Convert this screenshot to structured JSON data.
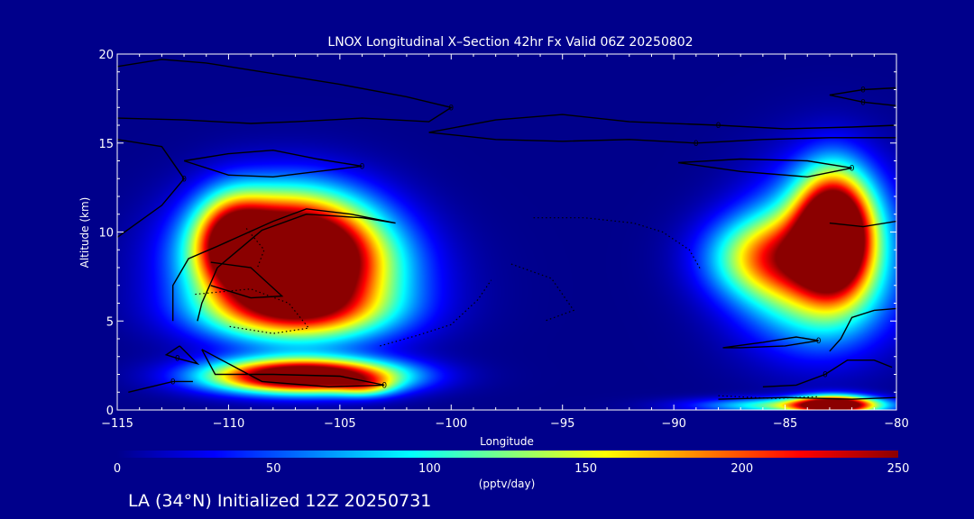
{
  "title": "LNOX Longitudinal X–Section 42hr  Fx Valid 06Z 20250802",
  "footer": "LA (34°N) Initialized 12Z 20250731",
  "chart_data": {
    "type": "heatmap",
    "title": "LNOX Longitudinal X–Section 42hr  Fx Valid 06Z 20250802",
    "xlabel": "Longitude",
    "ylabel": "Altitude (km)",
    "xlim": [
      -115,
      -80
    ],
    "ylim": [
      0,
      20
    ],
    "xticks": [
      {
        "value": -115,
        "label": "−115"
      },
      {
        "value": -110,
        "label": "−110"
      },
      {
        "value": -105,
        "label": "−105"
      },
      {
        "value": -100,
        "label": "−100"
      },
      {
        "value": -95,
        "label": "−95"
      },
      {
        "value": -90,
        "label": "−90"
      },
      {
        "value": -85,
        "label": "−85"
      },
      {
        "value": -80,
        "label": "−80"
      }
    ],
    "yticks": [
      {
        "value": 0,
        "label": "0"
      },
      {
        "value": 5,
        "label": "5"
      },
      {
        "value": 10,
        "label": "10"
      },
      {
        "value": 15,
        "label": "15"
      },
      {
        "value": 20,
        "label": "20"
      }
    ],
    "colorbar": {
      "label": "(pptv/day)",
      "range": [
        0,
        250
      ],
      "ticks": [
        {
          "value": 0,
          "label": "0"
        },
        {
          "value": 50,
          "label": "50"
        },
        {
          "value": 100,
          "label": "100"
        },
        {
          "value": 150,
          "label": "150"
        },
        {
          "value": 200,
          "label": "200"
        },
        {
          "value": 250,
          "label": "250"
        }
      ],
      "colors": [
        "#00008b",
        "#0000ff",
        "#0080ff",
        "#00ffff",
        "#80ff80",
        "#ffff00",
        "#ff8000",
        "#ff0000",
        "#8b0000"
      ]
    },
    "background_value": 0,
    "blobs": [
      {
        "name": "west-upper-core",
        "lon": -107.2,
        "alt": 9.0,
        "sx": 2.6,
        "sy": 2.2,
        "peak": 340
      },
      {
        "name": "west-upper-left",
        "lon": -109.8,
        "alt": 9.6,
        "sx": 1.1,
        "sy": 1.7,
        "peak": 150
      },
      {
        "name": "west-upper-spread",
        "lon": -106.5,
        "alt": 7.2,
        "sx": 3.2,
        "sy": 2.2,
        "peak": 130
      },
      {
        "name": "west-mid-wing",
        "lon": -107.0,
        "alt": 5.5,
        "sx": 3.0,
        "sy": 1.1,
        "peak": 100
      },
      {
        "name": "west-low-band",
        "lon": -106.6,
        "alt": 1.9,
        "sx": 2.9,
        "sy": 0.65,
        "peak": 330
      },
      {
        "name": "west-low-tail",
        "lon": -103.8,
        "alt": 1.3,
        "sx": 0.9,
        "sy": 0.4,
        "peak": 70
      },
      {
        "name": "east-upper-core",
        "lon": -82.8,
        "alt": 10.0,
        "sx": 1.1,
        "sy": 2.2,
        "peak": 300
      },
      {
        "name": "east-upper-spread",
        "lon": -83.2,
        "alt": 9.2,
        "sx": 2.2,
        "sy": 3.0,
        "peak": 130
      },
      {
        "name": "east-mid-tongue",
        "lon": -85.8,
        "alt": 8.6,
        "sx": 1.9,
        "sy": 1.6,
        "peak": 140
      },
      {
        "name": "east-low-spread",
        "lon": -83.8,
        "alt": 6.0,
        "sx": 2.4,
        "sy": 2.2,
        "peak": 55
      },
      {
        "name": "east-surface-core",
        "lon": -82.8,
        "alt": 0.3,
        "sx": 1.2,
        "sy": 0.35,
        "peak": 270
      },
      {
        "name": "east-surface-band",
        "lon": -84.5,
        "alt": 0.25,
        "sx": 3.0,
        "sy": 0.3,
        "peak": 120
      }
    ],
    "contours": [
      {
        "style": "solid",
        "label": "0",
        "points": [
          [
            -115,
            19.3
          ],
          [
            -113,
            19.7
          ],
          [
            -111,
            19.5
          ],
          [
            -108,
            18.9
          ],
          [
            -105,
            18.3
          ],
          [
            -102,
            17.6
          ],
          [
            -100,
            17.0
          ],
          [
            -101,
            16.2
          ],
          [
            -104,
            16.4
          ],
          [
            -107,
            16.2
          ],
          [
            -109,
            16.1
          ],
          [
            -112,
            16.3
          ],
          [
            -115,
            16.4
          ]
        ]
      },
      {
        "style": "solid",
        "label": "0",
        "points": [
          [
            -115,
            15.2
          ],
          [
            -113,
            14.8
          ],
          [
            -112,
            13.0
          ],
          [
            -113,
            11.5
          ],
          [
            -115,
            9.7
          ]
        ]
      },
      {
        "style": "solid",
        "label": "0",
        "points": [
          [
            -112,
            14.0
          ],
          [
            -110,
            14.4
          ],
          [
            -108,
            14.6
          ],
          [
            -106,
            14.1
          ],
          [
            -104,
            13.7
          ],
          [
            -106,
            13.4
          ],
          [
            -108,
            13.1
          ],
          [
            -110,
            13.2
          ],
          [
            -112,
            14.0
          ]
        ]
      },
      {
        "style": "solid",
        "label": "0",
        "points": [
          [
            -101,
            15.6
          ],
          [
            -98,
            16.3
          ],
          [
            -95,
            16.6
          ],
          [
            -92,
            16.2
          ],
          [
            -88,
            16.0
          ],
          [
            -85,
            15.8
          ],
          [
            -82,
            15.9
          ],
          [
            -80,
            16.0
          ]
        ]
      },
      {
        "style": "solid",
        "label": "0",
        "points": [
          [
            -101,
            15.6
          ],
          [
            -98,
            15.2
          ],
          [
            -95,
            15.1
          ],
          [
            -92,
            15.2
          ],
          [
            -89,
            15.0
          ],
          [
            -86,
            15.2
          ],
          [
            -83,
            15.3
          ],
          [
            -80,
            15.3
          ]
        ]
      },
      {
        "style": "solid",
        "label": "0",
        "points": [
          [
            -83,
            17.7
          ],
          [
            -81.5,
            18.0
          ],
          [
            -80,
            18.1
          ]
        ]
      },
      {
        "style": "solid",
        "label": "0",
        "points": [
          [
            -83,
            17.7
          ],
          [
            -81.5,
            17.3
          ],
          [
            -80,
            17.1
          ]
        ]
      },
      {
        "style": "solid",
        "label": "0",
        "points": [
          [
            -89.8,
            13.9
          ],
          [
            -87,
            14.1
          ],
          [
            -84,
            14.0
          ],
          [
            -82,
            13.6
          ],
          [
            -84,
            13.1
          ],
          [
            -87,
            13.4
          ],
          [
            -89.8,
            13.9
          ]
        ]
      },
      {
        "style": "solid",
        "label": "0",
        "points": [
          [
            -111.2,
            3.4
          ],
          [
            -110.6,
            2.0
          ],
          [
            -108,
            2.0
          ],
          [
            -105,
            1.9
          ],
          [
            -103,
            1.4
          ],
          [
            -105.5,
            1.3
          ],
          [
            -108.5,
            1.6
          ],
          [
            -111.2,
            3.4
          ]
        ]
      },
      {
        "style": "solid",
        "label": "0",
        "points": [
          [
            -114.5,
            1.0
          ],
          [
            -112.5,
            1.6
          ],
          [
            -111.6,
            1.6
          ]
        ]
      },
      {
        "style": "solid",
        "label": "0",
        "points": [
          [
            -112.2,
            3.6
          ],
          [
            -111.8,
            3.1
          ],
          [
            -111.4,
            2.6
          ],
          [
            -112.3,
            2.9
          ],
          [
            -112.8,
            3.1
          ],
          [
            -112.2,
            3.6
          ]
        ]
      },
      {
        "style": "solid",
        "label": "",
        "points": [
          [
            -112.5,
            5.0
          ],
          [
            -112.5,
            7.0
          ],
          [
            -111.8,
            8.5
          ],
          [
            -110.5,
            9.2
          ],
          [
            -108,
            10.6
          ],
          [
            -106.5,
            11.3
          ],
          [
            -104.5,
            11.0
          ],
          [
            -102.5,
            10.5
          ],
          [
            -104,
            10.8
          ],
          [
            -106.5,
            11.0
          ],
          [
            -108.5,
            10.1
          ],
          [
            -110.5,
            8.0
          ],
          [
            -111.2,
            6.0
          ],
          [
            -111.4,
            5.0
          ]
        ]
      },
      {
        "style": "solid",
        "label": "",
        "points": [
          [
            -110.8,
            8.3
          ],
          [
            -109,
            8.0
          ],
          [
            -107.6,
            6.4
          ],
          [
            -109,
            6.3
          ],
          [
            -110.8,
            7.0
          ]
        ]
      },
      {
        "style": "solid",
        "label": "0",
        "points": [
          [
            -87.8,
            3.5
          ],
          [
            -86,
            3.8
          ],
          [
            -84.5,
            4.1
          ],
          [
            -83.5,
            3.9
          ],
          [
            -85,
            3.6
          ],
          [
            -87,
            3.5
          ],
          [
            -87.8,
            3.5
          ]
        ]
      },
      {
        "style": "solid",
        "label": "",
        "points": [
          [
            -83,
            10.5
          ],
          [
            -81.5,
            10.3
          ],
          [
            -80,
            10.6
          ]
        ]
      },
      {
        "style": "solid",
        "label": "",
        "points": [
          [
            -83,
            3.3
          ],
          [
            -82.5,
            4.0
          ],
          [
            -82,
            5.2
          ],
          [
            -81,
            5.6
          ],
          [
            -80,
            5.7
          ]
        ]
      },
      {
        "style": "solid",
        "label": "0",
        "points": [
          [
            -80.2,
            2.4
          ],
          [
            -81,
            2.8
          ],
          [
            -82.2,
            2.8
          ],
          [
            -83.2,
            2.0
          ],
          [
            -84.5,
            1.4
          ],
          [
            -86,
            1.3
          ]
        ]
      },
      {
        "style": "solid",
        "label": "",
        "points": [
          [
            -88,
            0.6
          ],
          [
            -85,
            0.7
          ],
          [
            -82,
            0.6
          ],
          [
            -80,
            0.7
          ]
        ]
      },
      {
        "style": "dotted",
        "label": "",
        "points": [
          [
            -111.5,
            6.5
          ],
          [
            -109,
            6.8
          ],
          [
            -107.3,
            6.0
          ],
          [
            -106.4,
            4.6
          ],
          [
            -108,
            4.3
          ],
          [
            -110,
            4.7
          ]
        ]
      },
      {
        "style": "dotted",
        "label": "",
        "points": [
          [
            -109.2,
            10.2
          ],
          [
            -108.4,
            9.0
          ],
          [
            -108.7,
            8.0
          ]
        ]
      },
      {
        "style": "dotted",
        "label": "",
        "points": [
          [
            -103.2,
            3.6
          ],
          [
            -101.5,
            4.2
          ],
          [
            -100,
            4.8
          ],
          [
            -98.8,
            6.2
          ],
          [
            -98.2,
            7.3
          ]
        ]
      },
      {
        "style": "dotted",
        "label": "",
        "points": [
          [
            -97.3,
            8.2
          ],
          [
            -95.5,
            7.4
          ],
          [
            -94.5,
            5.6
          ],
          [
            -95.8,
            5.0
          ]
        ]
      },
      {
        "style": "dotted",
        "label": "",
        "points": [
          [
            -96.3,
            10.8
          ],
          [
            -94,
            10.8
          ],
          [
            -91.8,
            10.5
          ],
          [
            -90.5,
            10.0
          ],
          [
            -89.3,
            9.0
          ],
          [
            -88.8,
            7.9
          ]
        ]
      },
      {
        "style": "dotted",
        "label": "",
        "points": [
          [
            -88,
            0.8
          ],
          [
            -85.5,
            0.65
          ],
          [
            -83.5,
            0.75
          ]
        ]
      }
    ]
  }
}
